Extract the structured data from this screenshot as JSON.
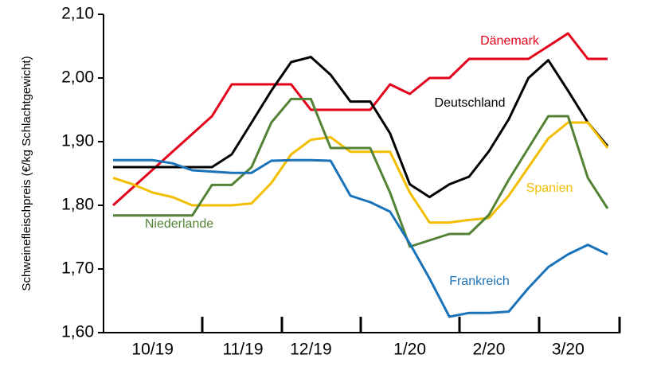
{
  "chart_data": {
    "type": "line",
    "y_label": "Schweinefleischpreis (€/kg Schlachtgewicht)",
    "categories": [
      null,
      null,
      "10/19",
      null,
      null,
      null,
      null,
      null,
      null,
      null,
      "12/19",
      null,
      null,
      null,
      null,
      "1/20",
      null,
      null,
      null,
      "2/20",
      null,
      null,
      null,
      "3/20",
      null,
      null
    ],
    "extra_x_labels": [
      {
        "label": "11/19"
      }
    ],
    "ylim": [
      1.6,
      2.1
    ],
    "yticks": [
      {
        "value": 1.6,
        "label": "1,60"
      },
      {
        "value": 1.7,
        "label": "1,70"
      },
      {
        "value": 1.8,
        "label": "1,80"
      },
      {
        "value": 1.9,
        "label": "1,90"
      },
      {
        "value": 2.0,
        "label": "2,00"
      },
      {
        "value": 2.1,
        "label": "2,10"
      }
    ],
    "grid": false,
    "series": [
      {
        "name": "Dänemark",
        "color": "#e3001b",
        "values": [
          1.8,
          1.828,
          1.856,
          1.884,
          1.912,
          1.94,
          1.99,
          1.99,
          1.99,
          1.99,
          1.95,
          1.95,
          1.95,
          1.95,
          1.99,
          1.975,
          2.0,
          2.0,
          2.03,
          2.03,
          2.03,
          2.03,
          2.05,
          2.07,
          2.03,
          2.03
        ]
      },
      {
        "name": "Deutschland",
        "color": "#000000",
        "values": [
          1.86,
          1.86,
          1.86,
          1.86,
          1.86,
          1.86,
          1.88,
          1.93,
          1.98,
          2.025,
          2.033,
          2.005,
          1.963,
          1.963,
          1.913,
          1.833,
          1.813,
          1.833,
          1.845,
          1.885,
          1.935,
          2.0,
          2.028,
          1.98,
          1.93,
          1.893
        ]
      },
      {
        "name": "Spanien",
        "color": "#f2be00",
        "values": [
          1.843,
          1.833,
          1.82,
          1.813,
          1.8,
          1.8,
          1.8,
          1.803,
          1.835,
          1.88,
          1.903,
          1.907,
          1.884,
          1.884,
          1.884,
          1.82,
          1.773,
          1.773,
          1.777,
          1.78,
          1.815,
          1.86,
          1.905,
          1.93,
          1.93,
          1.89
        ]
      },
      {
        "name": "Niederlande",
        "color": "#548235",
        "values": [
          1.784,
          1.784,
          1.784,
          1.784,
          1.784,
          1.832,
          1.832,
          1.86,
          1.93,
          1.967,
          1.967,
          1.89,
          1.89,
          1.89,
          1.82,
          1.735,
          1.745,
          1.755,
          1.755,
          1.785,
          1.84,
          1.89,
          1.94,
          1.94,
          1.843,
          1.795
        ]
      },
      {
        "name": "Frankreich",
        "color": "#1a72b8",
        "values": [
          1.871,
          1.871,
          1.871,
          1.866,
          1.855,
          1.853,
          1.851,
          1.851,
          1.87,
          1.871,
          1.871,
          1.87,
          1.815,
          1.805,
          1.79,
          1.74,
          1.685,
          1.625,
          1.631,
          1.631,
          1.633,
          1.67,
          1.703,
          1.723,
          1.738,
          1.723
        ]
      }
    ]
  }
}
